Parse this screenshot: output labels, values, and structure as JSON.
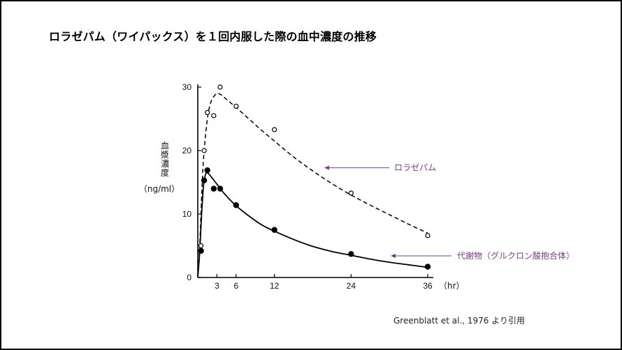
{
  "title": "ロラゼパム（ワイパックス）を１回内服した際の血中濃度の推移",
  "citation": "Greenblatt et al., 1976 より引用",
  "colors": {
    "annotation": "#7a3b8f",
    "line": "#000000"
  },
  "chart_data": {
    "type": "scatter",
    "title": "",
    "ylabel_chars": [
      "血",
      "漿",
      "濃",
      "度"
    ],
    "ylabel_unit": "（ng/ml）",
    "xlabel_unit": "（hr）",
    "xlim": [
      0,
      36
    ],
    "ylim": [
      0,
      30
    ],
    "xticks": [
      3,
      6,
      12,
      24,
      36
    ],
    "yticks": [
      0,
      10,
      20,
      30
    ],
    "grid": false,
    "series": [
      {
        "name": "ロラゼパム",
        "marker": "open-circle",
        "line": "dashed",
        "points": [
          [
            0.5,
            5
          ],
          [
            1,
            20
          ],
          [
            1.5,
            26
          ],
          [
            2.5,
            25.5
          ],
          [
            3.5,
            30
          ],
          [
            6,
            27
          ],
          [
            12,
            23.3
          ],
          [
            24,
            13.3
          ],
          [
            36,
            6.6
          ]
        ],
        "curve": [
          [
            0,
            0
          ],
          [
            0.3,
            5
          ],
          [
            0.7,
            15
          ],
          [
            1,
            20
          ],
          [
            1.5,
            25
          ],
          [
            2,
            27.5
          ],
          [
            2.5,
            28.5
          ],
          [
            3,
            29
          ],
          [
            3.5,
            28.9
          ],
          [
            4,
            28.5
          ],
          [
            6,
            26.8
          ],
          [
            8,
            25
          ],
          [
            10,
            23.2
          ],
          [
            12,
            21.5
          ],
          [
            15,
            19
          ],
          [
            18,
            16.8
          ],
          [
            21,
            14.8
          ],
          [
            24,
            13
          ],
          [
            27,
            11.4
          ],
          [
            30,
            9.9
          ],
          [
            33,
            8.4
          ],
          [
            36,
            7
          ]
        ]
      },
      {
        "name": "代謝物（グルクロン酸抱合体）",
        "marker": "filled-circle",
        "line": "solid",
        "points": [
          [
            0.5,
            4.2
          ],
          [
            1,
            15.3
          ],
          [
            1.5,
            16.9
          ],
          [
            2.5,
            14
          ],
          [
            3.5,
            14
          ],
          [
            6,
            11.4
          ],
          [
            12,
            7.5
          ],
          [
            24,
            3.7
          ],
          [
            36,
            1.7
          ]
        ],
        "curve": [
          [
            0,
            0
          ],
          [
            0.3,
            4
          ],
          [
            0.6,
            10
          ],
          [
            0.9,
            14.5
          ],
          [
            1.2,
            16.2
          ],
          [
            1.5,
            16.5
          ],
          [
            2,
            16
          ],
          [
            3,
            14.7
          ],
          [
            4,
            13.4
          ],
          [
            5,
            12.3
          ],
          [
            6,
            11.3
          ],
          [
            8,
            9.7
          ],
          [
            10,
            8.3
          ],
          [
            12,
            7.3
          ],
          [
            15,
            6
          ],
          [
            18,
            4.9
          ],
          [
            21,
            4.1
          ],
          [
            24,
            3.5
          ],
          [
            27,
            2.9
          ],
          [
            30,
            2.4
          ],
          [
            33,
            2
          ],
          [
            36,
            1.6
          ]
        ]
      }
    ],
    "annotations": [
      {
        "text": "ロラゼパム",
        "at": [
          17.5,
          17.3
        ]
      },
      {
        "text": "代謝物（グルクロン酸抱合体）",
        "at": [
          28.5,
          3.4
        ]
      }
    ]
  }
}
